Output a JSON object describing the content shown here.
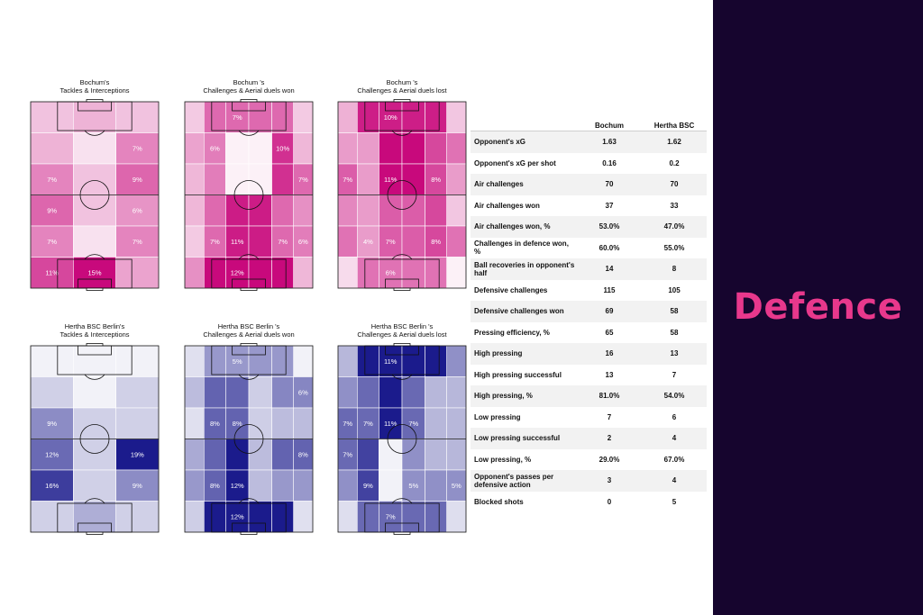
{
  "panel": {
    "title": "Defence",
    "bg_color": "#16052e",
    "title_color": "#e8388c"
  },
  "chart_data": [
    {
      "type": "heatmap",
      "title_lines": [
        "Bochum's",
        "Tackles & Interceptions"
      ],
      "color": "#c8097c",
      "rows": [
        {
          "vals": [
            3,
            4,
            3
          ],
          "labels": [
            "",
            "",
            ""
          ]
        },
        {
          "vals": [
            4,
            1,
            7
          ],
          "labels": [
            "",
            "",
            "7%"
          ]
        },
        {
          "vals": [
            7,
            3,
            9
          ],
          "labels": [
            "7%",
            "",
            "9%"
          ]
        },
        {
          "vals": [
            9,
            3,
            6
          ],
          "labels": [
            "9%",
            "",
            "6%"
          ]
        },
        {
          "vals": [
            7,
            1,
            7
          ],
          "labels": [
            "7%",
            "",
            "7%"
          ]
        },
        {
          "vals": [
            11,
            15,
            5
          ],
          "labels": [
            "11%",
            "15%",
            ""
          ]
        }
      ]
    },
    {
      "type": "heatmap",
      "title_lines": [
        "Bochum 's",
        "Challenges & Aerial duels won"
      ],
      "color": "#c8097c",
      "cols": [
        51,
        51,
        20,
        20,
        51,
        51
      ],
      "rows": [
        {
          "vals": [
            2,
            7,
            7,
            7,
            7,
            2
          ],
          "labels": [
            "",
            "",
            "7%",
            "",
            "",
            ""
          ]
        },
        {
          "vals": [
            4,
            6,
            0,
            0,
            10,
            3
          ],
          "labels": [
            "",
            "6%",
            "",
            "",
            "10%",
            ""
          ]
        },
        {
          "vals": [
            3,
            6,
            0,
            0,
            10,
            7
          ],
          "labels": [
            "",
            "",
            "",
            "",
            "",
            "7%"
          ]
        },
        {
          "vals": [
            3,
            7,
            11,
            11,
            7,
            5
          ],
          "labels": [
            "",
            "",
            "",
            "",
            "",
            ""
          ]
        },
        {
          "vals": [
            2,
            7,
            11,
            11,
            7,
            6
          ],
          "labels": [
            "",
            "7%",
            "11%",
            "",
            "7%",
            "6%"
          ]
        },
        {
          "vals": [
            5,
            12,
            12,
            12,
            12,
            3
          ],
          "labels": [
            "",
            "",
            "12%",
            "",
            "",
            ""
          ]
        }
      ]
    },
    {
      "type": "heatmap",
      "title_lines": [
        "Bochum 's",
        "Challenges & Aerial duels lost"
      ],
      "color": "#c8097c",
      "rows": [
        {
          "vals": [
            3,
            10,
            10,
            10,
            10,
            2
          ],
          "labels": [
            "",
            "",
            "10%",
            "",
            "",
            ""
          ]
        },
        {
          "vals": [
            4,
            4,
            11,
            11,
            8,
            6
          ],
          "labels": [
            "",
            "",
            "",
            "",
            "",
            ""
          ]
        },
        {
          "vals": [
            7,
            4,
            11,
            11,
            8,
            4
          ],
          "labels": [
            "7%",
            "",
            "11%",
            "",
            "8%",
            ""
          ]
        },
        {
          "vals": [
            5,
            4,
            7,
            7,
            8,
            2
          ],
          "labels": [
            "",
            "",
            "",
            "",
            "",
            ""
          ]
        },
        {
          "vals": [
            6,
            4,
            7,
            7,
            8,
            6
          ],
          "labels": [
            "",
            "4%",
            "7%",
            "",
            "8%",
            ""
          ]
        },
        {
          "vals": [
            1,
            6,
            6,
            6,
            6,
            0
          ],
          "labels": [
            "",
            "",
            "6%",
            "",
            "",
            ""
          ]
        }
      ]
    },
    {
      "type": "heatmap",
      "title_lines": [
        "Hertha BSC Berlin's",
        "Tackles & Interceptions"
      ],
      "color": "#1b1b8c",
      "rows": [
        {
          "vals": [
            0,
            0,
            0
          ],
          "labels": [
            "",
            "",
            ""
          ]
        },
        {
          "vals": [
            3,
            0,
            3
          ],
          "labels": [
            "",
            "",
            ""
          ]
        },
        {
          "vals": [
            9,
            3,
            3
          ],
          "labels": [
            "9%",
            "",
            ""
          ]
        },
        {
          "vals": [
            12,
            3,
            19
          ],
          "labels": [
            "12%",
            "",
            "19%"
          ]
        },
        {
          "vals": [
            16,
            3,
            9
          ],
          "labels": [
            "16%",
            "",
            "9%"
          ]
        },
        {
          "vals": [
            3,
            6,
            3
          ],
          "labels": [
            "",
            "",
            ""
          ]
        }
      ]
    },
    {
      "type": "heatmap",
      "title_lines": [
        "Hertha BSC Berlin 's",
        "Challenges & Aerial duels won"
      ],
      "color": "#1b1b8c",
      "rows": [
        {
          "vals": [
            1,
            5,
            5,
            5,
            5,
            0
          ],
          "labels": [
            "",
            "",
            "5%",
            "",
            "",
            ""
          ]
        },
        {
          "vals": [
            3,
            8,
            8,
            2,
            6,
            6
          ],
          "labels": [
            "",
            "",
            "",
            "",
            "",
            "6%"
          ]
        },
        {
          "vals": [
            1,
            8,
            8,
            2,
            3,
            3
          ],
          "labels": [
            "",
            "8%",
            "8%",
            "",
            "",
            ""
          ]
        },
        {
          "vals": [
            4,
            8,
            12,
            3,
            8,
            8
          ],
          "labels": [
            "",
            "",
            "",
            "",
            "",
            "8%"
          ]
        },
        {
          "vals": [
            5,
            8,
            12,
            3,
            5,
            5
          ],
          "labels": [
            "",
            "8%",
            "12%",
            "",
            "",
            ""
          ]
        },
        {
          "vals": [
            2,
            12,
            12,
            12,
            12,
            1
          ],
          "labels": [
            "",
            "",
            "12%",
            "",
            "",
            ""
          ]
        }
      ]
    },
    {
      "type": "heatmap",
      "title_lines": [
        "Hertha BSC Berlin 's",
        "Challenges & Aerial duels lost"
      ],
      "color": "#1b1b8c",
      "rows": [
        {
          "vals": [
            3,
            11,
            11,
            11,
            11,
            5
          ],
          "labels": [
            "",
            "",
            "11%",
            "",
            "",
            ""
          ]
        },
        {
          "vals": [
            5,
            7,
            11,
            7,
            3,
            3
          ],
          "labels": [
            "",
            "",
            "",
            "",
            "",
            ""
          ]
        },
        {
          "vals": [
            7,
            7,
            11,
            7,
            3,
            3
          ],
          "labels": [
            "7%",
            "7%",
            "11%",
            "7%",
            "",
            ""
          ]
        },
        {
          "vals": [
            7,
            9,
            0,
            5,
            3,
            3
          ],
          "labels": [
            "7%",
            "",
            "",
            "",
            "",
            ""
          ]
        },
        {
          "vals": [
            5,
            9,
            0,
            5,
            5,
            5
          ],
          "labels": [
            "",
            "9%",
            "",
            "5%",
            "",
            "5%"
          ]
        },
        {
          "vals": [
            1,
            7,
            7,
            7,
            7,
            1
          ],
          "labels": [
            "",
            "",
            "7%",
            "",
            "",
            ""
          ]
        }
      ]
    }
  ],
  "table": {
    "headers": [
      "",
      "Bochum",
      "Hertha BSC"
    ],
    "rows": [
      {
        "metric": "Opponent's xG",
        "a": "1.63",
        "b": "1.62"
      },
      {
        "metric": "Opponent's xG per shot",
        "a": "0.16",
        "b": "0.2"
      },
      {
        "metric": "Air challenges",
        "a": "70",
        "b": "70"
      },
      {
        "metric": "Air challenges won",
        "a": "37",
        "b": "33"
      },
      {
        "metric": "Air challenges won, %",
        "a": "53.0%",
        "b": "47.0%"
      },
      {
        "metric": "Challenges in defence won, %",
        "a": "60.0%",
        "b": "55.0%"
      },
      {
        "metric": "Ball recoveries in opponent's half",
        "a": "14",
        "b": "8"
      },
      {
        "metric": "Defensive challenges",
        "a": "115",
        "b": "105"
      },
      {
        "metric": "Defensive challenges won",
        "a": "69",
        "b": "58"
      },
      {
        "metric": "Pressing efficiency, %",
        "a": "65",
        "b": "58"
      },
      {
        "metric": "High pressing",
        "a": "16",
        "b": "13"
      },
      {
        "metric": "High pressing successful",
        "a": "13",
        "b": "7"
      },
      {
        "metric": "High pressing, %",
        "a": "81.0%",
        "b": "54.0%"
      },
      {
        "metric": "Low pressing",
        "a": "7",
        "b": "6"
      },
      {
        "metric": "Low pressing successful",
        "a": "2",
        "b": "4"
      },
      {
        "metric": "Low pressing, %",
        "a": "29.0%",
        "b": "67.0%"
      },
      {
        "metric": "Opponent's passes per defensive action",
        "a": "3",
        "b": "4"
      },
      {
        "metric": "Blocked shots",
        "a": "0",
        "b": "5"
      }
    ]
  }
}
